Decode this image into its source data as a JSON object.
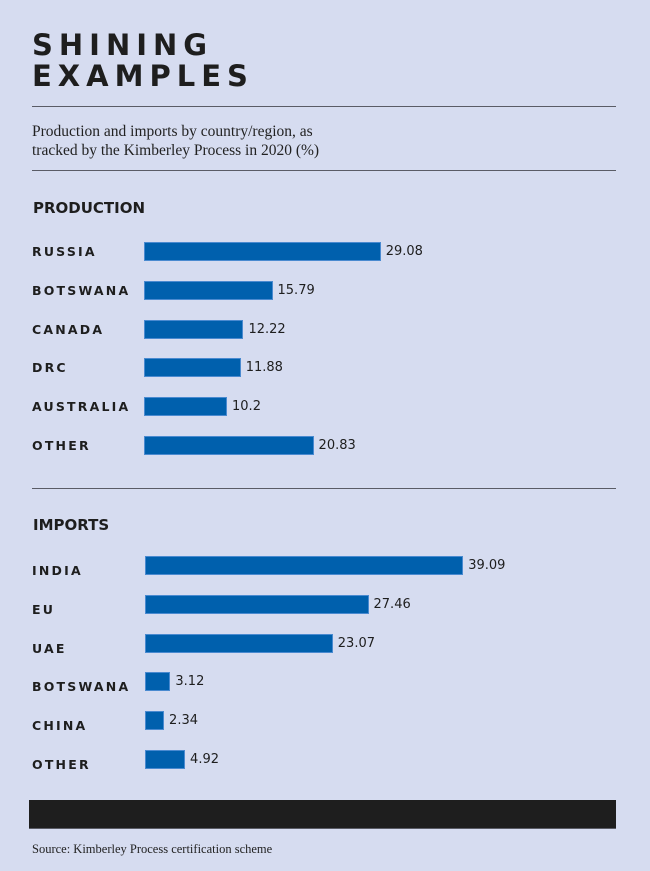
{
  "header": {
    "title_line1": "SHINING",
    "title_line2": "EXAMPLES",
    "subtitle_line1": "Production and imports by country/region, as",
    "subtitle_line2": "tracked by the Kimberley Process in 2020 (%)"
  },
  "colors": {
    "background": "#d6dcf0",
    "bar": "#0060ad",
    "text": "#1e1e1e"
  },
  "chart_data": [
    {
      "type": "bar",
      "orientation": "horizontal",
      "title": "PRODUCTION",
      "categories": [
        "RUSSIA",
        "BOTSWANA",
        "CANADA",
        "DRC",
        "AUSTRALIA",
        "OTHER"
      ],
      "values": [
        29.08,
        15.79,
        12.22,
        11.88,
        10.2,
        20.83
      ],
      "value_labels": [
        "29.08",
        "15.79",
        "12.22",
        "11.88",
        "10.2",
        "20.83"
      ],
      "xlabel": "",
      "ylabel": "",
      "unit": "%",
      "grid": false,
      "legend": "none"
    },
    {
      "type": "bar",
      "orientation": "horizontal",
      "title": "IMPORTS",
      "categories": [
        "INDIA",
        "EU",
        "UAE",
        "BOTSWANA",
        "CHINA",
        "OTHER"
      ],
      "values": [
        39.09,
        27.46,
        23.07,
        3.12,
        2.34,
        4.92
      ],
      "value_labels": [
        "39.09",
        "27.46",
        "23.07",
        "3.12",
        "2.34",
        "4.92"
      ],
      "xlabel": "",
      "ylabel": "",
      "unit": "%",
      "grid": false,
      "legend": "none"
    }
  ],
  "footer": {
    "source": "Source: Kimberley Process certification scheme"
  }
}
